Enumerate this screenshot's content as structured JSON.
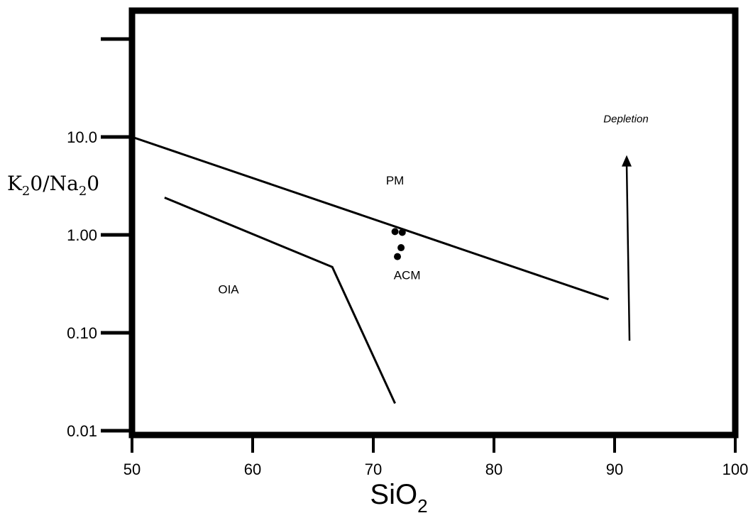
{
  "chart_data": {
    "type": "scatter",
    "title": "",
    "xlabel": "SiO",
    "xlabel_sub": "2",
    "ylabel": {
      "parts": [
        "K",
        "2",
        "0/Na",
        "2",
        "0"
      ]
    },
    "xlim": [
      50,
      100
    ],
    "ylim": [
      0.01,
      100
    ],
    "yscale": "log",
    "x_ticks": [
      {
        "value": 50,
        "label": "50"
      },
      {
        "value": 60,
        "label": "60"
      },
      {
        "value": 70,
        "label": "70"
      },
      {
        "value": 80,
        "label": "80"
      },
      {
        "value": 90,
        "label": "90"
      },
      {
        "value": 100,
        "label": "100"
      }
    ],
    "y_ticks": [
      {
        "value": 0.01,
        "label": "0.01"
      },
      {
        "value": 0.1,
        "label": "0.10"
      },
      {
        "value": 1.0,
        "label": "1.00"
      },
      {
        "value": 10.0,
        "label": "10.0"
      },
      {
        "value": 100.0,
        "label": ""
      }
    ],
    "boundaries": [
      {
        "points": [
          [
            50,
            10.0
          ],
          [
            89.5,
            0.22
          ]
        ]
      },
      {
        "points": [
          [
            52.7,
            2.4
          ],
          [
            66.6,
            0.47
          ],
          [
            71.8,
            0.019
          ]
        ]
      }
    ],
    "points": [
      {
        "x": 71.8,
        "y": 1.08
      },
      {
        "x": 72.4,
        "y": 1.06
      },
      {
        "x": 72.3,
        "y": 0.74
      },
      {
        "x": 72.0,
        "y": 0.6
      }
    ],
    "region_labels": [
      {
        "text": "PM",
        "x": 71.8,
        "y": 3.6
      },
      {
        "text": "ACM",
        "x": 72.8,
        "y": 0.39
      },
      {
        "text": "OIA",
        "x": 58.0,
        "y": 0.28
      }
    ],
    "annotation": {
      "text": "Depletion",
      "arrow_x": 91.0,
      "arrow_from": 0.083,
      "arrow_to": 6.2,
      "label_x": 92.0,
      "label_y": 15.0
    },
    "grid": false,
    "legend": "none"
  }
}
